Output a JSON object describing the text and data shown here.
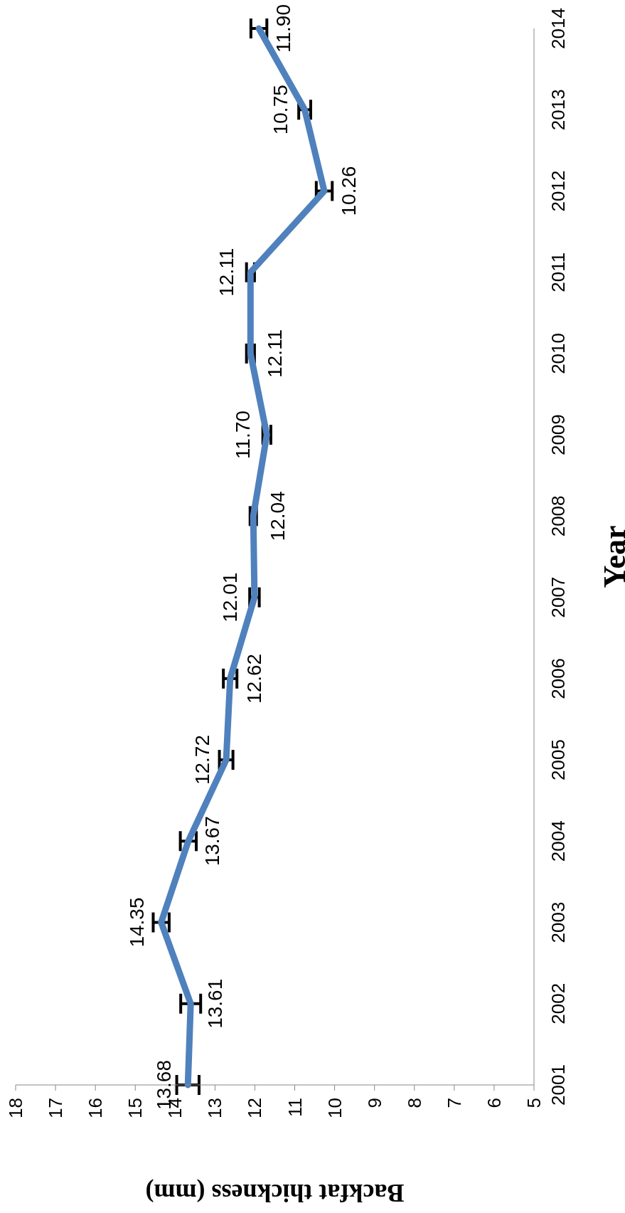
{
  "chart_data": {
    "type": "line",
    "orientation": "horizontal",
    "xlabel": "Backfat thickness (mm)",
    "ylabel": "Year",
    "categories": [
      "2014",
      "2013",
      "2012",
      "2011",
      "2010",
      "2009",
      "2008",
      "2007",
      "2006",
      "2005",
      "2004",
      "2003",
      "2002",
      "2001"
    ],
    "series": [
      {
        "color": "#4f81bd",
        "values": [
          11.9,
          10.75,
          10.26,
          12.11,
          12.11,
          11.7,
          12.04,
          12.01,
          12.62,
          12.72,
          13.67,
          14.35,
          13.61,
          13.68
        ],
        "errors": [
          0.2,
          0.15,
          0.2,
          0.1,
          0.1,
          0.1,
          0.08,
          0.12,
          0.17,
          0.17,
          0.2,
          0.2,
          0.25,
          0.28
        ],
        "value_labels": [
          "11.90",
          "10.75",
          "10.26",
          "12.11",
          "12.11",
          "11.70",
          "12.04",
          "12.01",
          "12.62",
          "12.72",
          "13.67",
          "14.35",
          "13.61",
          "13.68"
        ]
      }
    ],
    "xlim": [
      18,
      5
    ],
    "xticks": [
      18,
      17,
      16,
      15,
      14,
      13,
      12,
      11,
      10,
      9,
      8,
      7,
      6,
      5
    ],
    "marker": "none",
    "line_style": "solid"
  }
}
